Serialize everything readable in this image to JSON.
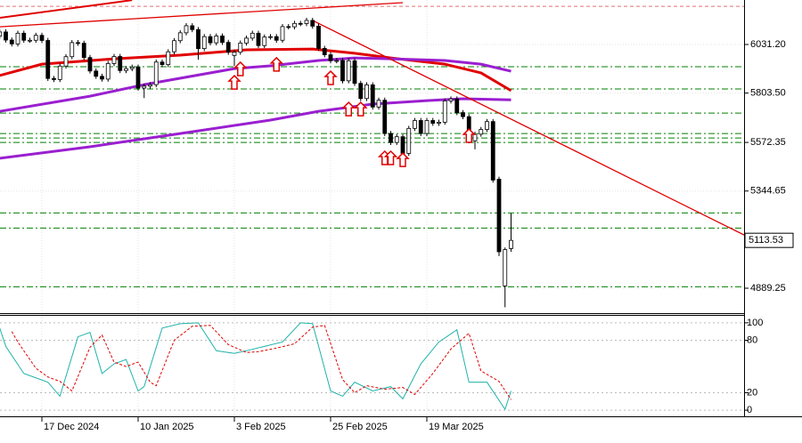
{
  "chart_data": [
    {
      "type": "candlestick",
      "categories": [
        null,
        null,
        null,
        null,
        null,
        null,
        null,
        "17 Dec 2024",
        null,
        null,
        null,
        null,
        null,
        null,
        null,
        null,
        null,
        null,
        null,
        null,
        null,
        null,
        null,
        "10 Jan 2025",
        null,
        null,
        null,
        null,
        null,
        null,
        null,
        null,
        null,
        null,
        null,
        null,
        null,
        null,
        null,
        "3 Feb 2025",
        null,
        null,
        null,
        null,
        null,
        null,
        null,
        null,
        null,
        null,
        null,
        null,
        null,
        null,
        null,
        "25 Feb 2025",
        null,
        null,
        null,
        null,
        null,
        null,
        null,
        null,
        null,
        null,
        null,
        null,
        null,
        null,
        null,
        "19 Mar 2025",
        null,
        null,
        null,
        null,
        null,
        null,
        null,
        null,
        null,
        null,
        null,
        null,
        null,
        null
      ],
      "open": [
        6070,
        6090,
        6052,
        6034,
        6084,
        6051,
        6051,
        6074,
        6050,
        5872,
        5867,
        5930,
        5974,
        6040,
        6037,
        5970,
        5907,
        5882,
        5869,
        5942,
        5975,
        5909,
        5918,
        5925,
        5827,
        5836,
        5843,
        5949,
        5937,
        5997,
        6049,
        6086,
        6119,
        6101,
        6012,
        6068,
        6039,
        6071,
        6041,
        5980,
        5995,
        6038,
        6061,
        6084,
        6026,
        6066,
        6068,
        6051,
        6115,
        6114,
        6130,
        6129,
        6144,
        6117,
        6013,
        5983,
        5955,
        5956,
        5861,
        5955,
        5849,
        5778,
        5842,
        5738,
        5770,
        5614,
        5572,
        5599,
        5521,
        5638,
        5675,
        5614,
        5675,
        5662,
        5667,
        5767,
        5776,
        5712,
        5693,
        5580,
        5611,
        5633,
        5670,
        5400,
        4900,
        5075
      ],
      "high": [
        6102,
        6102,
        6064,
        6096,
        6096,
        6063,
        6086,
        6086,
        6062,
        5884,
        5942,
        5986,
        6052,
        6052,
        6049,
        5982,
        5919,
        5894,
        5954,
        5987,
        5987,
        5930,
        5937,
        5937,
        5848,
        5855,
        5961,
        5961,
        6009,
        6061,
        6098,
        6131,
        6131,
        6113,
        6080,
        6080,
        6083,
        6083,
        6053,
        6007,
        6050,
        6073,
        6096,
        6096,
        6078,
        6080,
        6080,
        6127,
        6127,
        6142,
        6142,
        6156,
        6156,
        6129,
        6025,
        5995,
        5968,
        5968,
        5967,
        5967,
        5861,
        5854,
        5854,
        5782,
        5782,
        5626,
        5611,
        5611,
        5650,
        5687,
        5687,
        5687,
        5687,
        5679,
        5779,
        5788,
        5788,
        5724,
        5705,
        5623,
        5645,
        5682,
        5682,
        5412,
        5080,
        5240
      ],
      "low": [
        6058,
        6040,
        6022,
        6022,
        6039,
        6039,
        6039,
        6038,
        5860,
        5855,
        5855,
        5918,
        5962,
        6025,
        5958,
        5895,
        5870,
        5857,
        5857,
        5930,
        5897,
        5897,
        5906,
        5815,
        5780,
        5824,
        5831,
        5925,
        5925,
        5985,
        6037,
        6074,
        6089,
        5960,
        6000,
        6027,
        6027,
        6029,
        5983,
        5930,
        5983,
        6026,
        6049,
        6014,
        6014,
        6054,
        6039,
        6039,
        6102,
        6102,
        6117,
        6117,
        6105,
        6001,
        5971,
        5943,
        5943,
        5849,
        5849,
        5837,
        5766,
        5766,
        5726,
        5726,
        5602,
        5560,
        5560,
        5509,
        5509,
        5626,
        5602,
        5602,
        5650,
        5650,
        5655,
        5755,
        5700,
        5681,
        5568,
        5540,
        5599,
        5621,
        5384,
        5040,
        4800,
        5060
      ],
      "close": [
        6090,
        6052,
        6034,
        6084,
        6051,
        6051,
        6074,
        6050,
        5872,
        5867,
        5930,
        5974,
        6040,
        6037,
        5970,
        5907,
        5882,
        5869,
        5942,
        5975,
        5909,
        5918,
        5925,
        5827,
        5836,
        5843,
        5949,
        5937,
        5997,
        6049,
        6086,
        6119,
        6101,
        6012,
        6068,
        6039,
        6071,
        6041,
        5995,
        5995,
        6038,
        6061,
        6084,
        6026,
        6066,
        6068,
        6051,
        6115,
        6114,
        6130,
        6129,
        6144,
        6117,
        6013,
        5983,
        5955,
        5956,
        5861,
        5955,
        5849,
        5778,
        5842,
        5738,
        5770,
        5614,
        5572,
        5599,
        5521,
        5638,
        5675,
        5614,
        5675,
        5662,
        5667,
        5767,
        5776,
        5712,
        5693,
        5580,
        5611,
        5633,
        5670,
        5396,
        5060,
        5070,
        5113.53
      ],
      "up_color": "#ffffff",
      "down_color": "#000000",
      "ylim": [
        4772.5,
        6239.6
      ],
      "yticks": [
        {
          "value": 6031.2,
          "label": "6031.20"
        },
        {
          "value": 5803.5,
          "label": "5803.50"
        },
        5572.35,
        5344.65,
        4889.25
      ],
      "grid": true,
      "lines": [
        {
          "color": "#e00000",
          "x": [
            0,
            7,
            19,
            30,
            41,
            52,
            59,
            65,
            74,
            80,
            85
          ],
          "values": [
            5886,
            5939,
            5964,
            5981,
            6006,
            6010,
            5990,
            5968,
            5939,
            5898,
            5815
          ]
        },
        {
          "color": "#9a1fd0",
          "x": [
            0,
            15,
            24,
            39,
            45,
            53,
            59,
            65,
            74,
            80,
            85
          ],
          "values": [
            5718,
            5789,
            5843,
            5918,
            5931,
            5956,
            5968,
            5964,
            5956,
            5939,
            5906
          ]
        },
        {
          "color": "#9a1fd0",
          "x": [
            0,
            15,
            30,
            45,
            53,
            62,
            71,
            77,
            85
          ],
          "values": [
            5498,
            5552,
            5614,
            5677,
            5718,
            5752,
            5768,
            5777,
            5772
          ]
        }
      ],
      "trendlines": [
        {
          "color": "#e00000",
          "x": [
            52,
            124
          ],
          "values": [
            6144,
            5135
          ]
        },
        {
          "color": "#e00000",
          "x": [
            0,
            67
          ],
          "values": [
            6114,
            6227
          ]
        },
        {
          "color": "#e00000",
          "x": [
            0,
            22
          ],
          "values": [
            6156,
            6239
          ]
        }
      ],
      "levels": [
        {
          "value": 6210,
          "color": "#e07070"
        },
        {
          "value": 5927,
          "color": "#008000"
        },
        {
          "value": 5823,
          "color": "#008000"
        },
        {
          "value": 5710,
          "color": "#008000"
        },
        {
          "value": 5614,
          "color": "#008000"
        },
        {
          "value": 5593,
          "color": "#008000"
        },
        {
          "value": 5572,
          "color": "#008000"
        },
        {
          "value": 5242,
          "color": "#008000"
        },
        {
          "value": 5171,
          "color": "#008000"
        },
        {
          "value": 4896,
          "color": "#008000"
        }
      ],
      "signals": {
        "color": "#e00000",
        "x": [
          39,
          40,
          46,
          55,
          58,
          60,
          64,
          65,
          67,
          78
        ],
        "values": [
          5885,
          5948,
          5969,
          5906,
          5760,
          5760,
          5531,
          5531,
          5522,
          5635
        ]
      }
    },
    {
      "type": "line",
      "ylim": [
        -7,
        108
      ],
      "yticks": [
        0,
        20,
        80,
        100
      ],
      "grid": true,
      "series": [
        {
          "color": "#20b2aa",
          "dash": false,
          "x": [
            0,
            1,
            4,
            6,
            8,
            10,
            13,
            15,
            17,
            19,
            21,
            23,
            24,
            27,
            30,
            33,
            36,
            39,
            41,
            44,
            47,
            50,
            52,
            55,
            57,
            59,
            62,
            65,
            67,
            70,
            73,
            76,
            78,
            81,
            84,
            85
          ],
          "values": [
            94,
            73,
            42,
            37,
            32,
            16,
            84,
            89,
            42,
            53,
            58,
            22,
            27,
            94,
            99,
            100,
            68,
            65,
            68,
            73,
            78,
            100,
            99,
            22,
            16,
            32,
            22,
            27,
            13,
            53,
            78,
            92,
            32,
            32,
            1,
            22
          ]
        },
        {
          "color": "#e00000",
          "dash": true,
          "x": [
            2,
            3,
            6,
            8,
            10,
            12,
            15,
            17,
            19,
            21,
            23,
            25,
            26,
            29,
            32,
            35,
            38,
            41,
            43,
            46,
            49,
            52,
            54,
            57,
            59,
            61,
            64,
            67,
            69,
            72,
            75,
            78,
            80,
            83,
            85
          ],
          "values": [
            90,
            78,
            48,
            38,
            33,
            22,
            72,
            86,
            55,
            50,
            55,
            32,
            28,
            80,
            96,
            97,
            75,
            66,
            67,
            71,
            76,
            95,
            97,
            35,
            20,
            28,
            24,
            26,
            18,
            42,
            70,
            88,
            45,
            33,
            12
          ]
        }
      ]
    }
  ]
}
